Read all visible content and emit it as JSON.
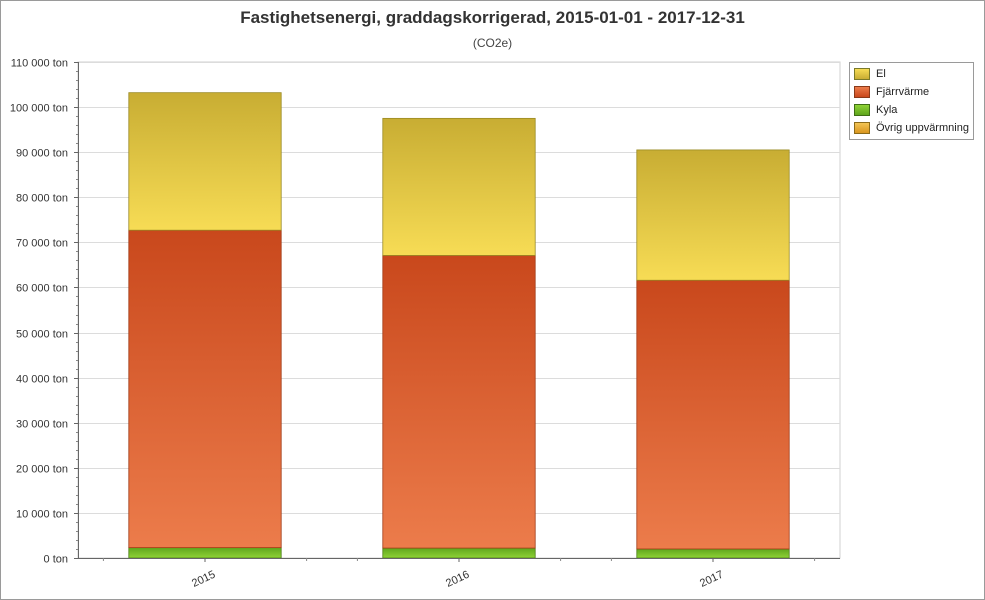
{
  "chart_data": {
    "type": "bar",
    "stacked": true,
    "title": "Fastighetsenergi, graddagskorrigerad, 2015-01-01 - 2017-12-31",
    "subtitle": "(CO2e)",
    "categories": [
      "2015",
      "2016",
      "2017"
    ],
    "series": [
      {
        "name": "Kyla",
        "values": [
          2300,
          2200,
          2000
        ],
        "color": "#7cc22a"
      },
      {
        "name": "Övrig uppvärmning",
        "values": [
          0,
          0,
          0
        ],
        "color": "#e8b03a"
      },
      {
        "name": "Fjärrvärme",
        "values": [
          70400,
          64900,
          59600
        ],
        "color": "#d9582a"
      },
      {
        "name": "El",
        "values": [
          30500,
          30400,
          28900
        ],
        "color": "#e3c23c"
      }
    ],
    "legend_order": [
      "El",
      "Fjärrvärme",
      "Kyla",
      "Övrig uppvärmning"
    ],
    "ylim": [
      0,
      110000
    ],
    "yticks": [
      0,
      10000,
      20000,
      30000,
      40000,
      50000,
      60000,
      70000,
      80000,
      90000,
      100000,
      110000
    ],
    "ytick_labels": [
      "0 ton",
      "10 000 ton",
      "20 000 ton",
      "30 000 ton",
      "40 000 ton",
      "50 000 ton",
      "60 000 ton",
      "70 000 ton",
      "80 000 ton",
      "90 000 ton",
      "100 000 ton",
      "110 000 ton"
    ],
    "grid": true,
    "legend_position": "top-right"
  }
}
